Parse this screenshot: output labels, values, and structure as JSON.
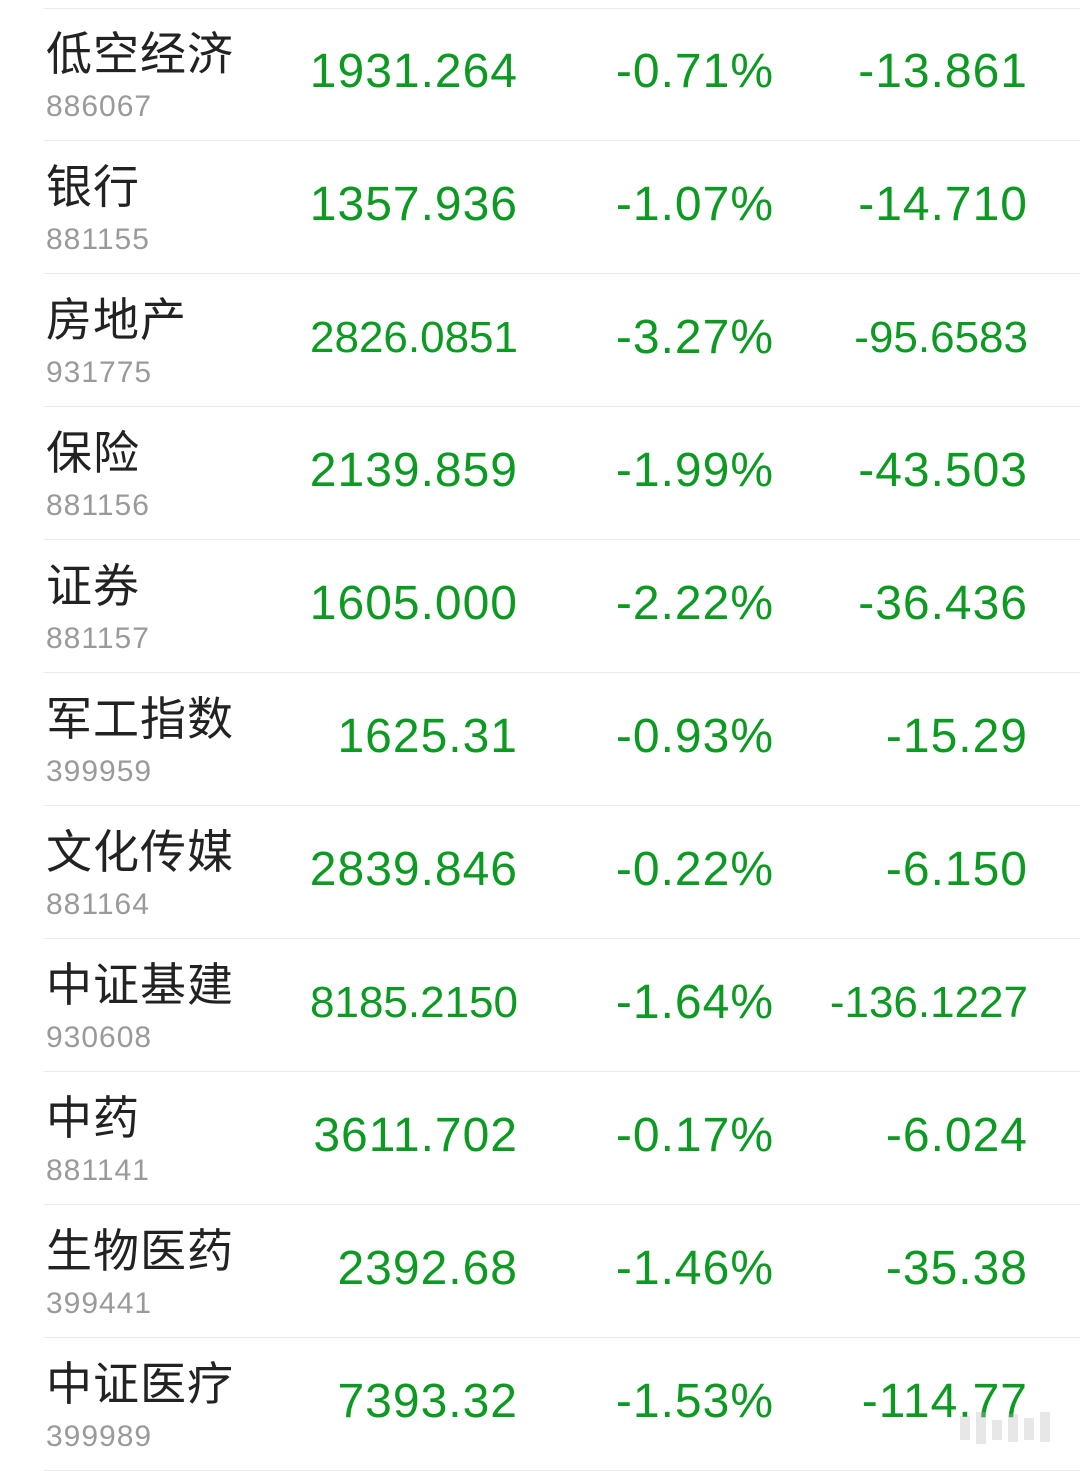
{
  "rows": [
    {
      "name": "低空经济",
      "code": "886067",
      "price": "1931.264",
      "pct": "-0.71%",
      "change": "-13.861"
    },
    {
      "name": "银行",
      "code": "881155",
      "price": "1357.936",
      "pct": "-1.07%",
      "change": "-14.710"
    },
    {
      "name": "房地产",
      "code": "931775",
      "price": "2826.0851",
      "pct": "-3.27%",
      "change": "-95.6583"
    },
    {
      "name": "保险",
      "code": "881156",
      "price": "2139.859",
      "pct": "-1.99%",
      "change": "-43.503"
    },
    {
      "name": "证券",
      "code": "881157",
      "price": "1605.000",
      "pct": "-2.22%",
      "change": "-36.436"
    },
    {
      "name": "军工指数",
      "code": "399959",
      "price": "1625.31",
      "pct": "-0.93%",
      "change": "-15.29"
    },
    {
      "name": "文化传媒",
      "code": "881164",
      "price": "2839.846",
      "pct": "-0.22%",
      "change": "-6.150"
    },
    {
      "name": "中证基建",
      "code": "930608",
      "price": "8185.2150",
      "pct": "-1.64%",
      "change": "-136.1227"
    },
    {
      "name": "中药",
      "code": "881141",
      "price": "3611.702",
      "pct": "-0.17%",
      "change": "-6.024"
    },
    {
      "name": "生物医药",
      "code": "399441",
      "price": "2392.68",
      "pct": "-1.46%",
      "change": "-35.38"
    },
    {
      "name": "中证医疗",
      "code": "399989",
      "price": "7393.32",
      "pct": "-1.53%",
      "change": "-114.77"
    }
  ],
  "colors": {
    "down": "#0d9a22",
    "name": "#222222",
    "code": "#9a9a9a",
    "divider": "#e9e9e9"
  }
}
